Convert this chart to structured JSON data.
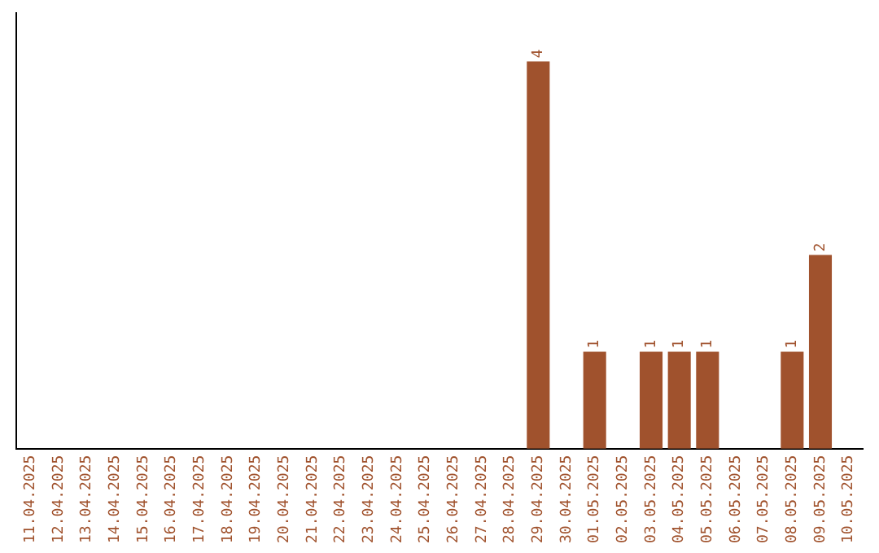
{
  "chart_data": {
    "type": "bar",
    "categories": [
      "11.04.2025",
      "12.04.2025",
      "13.04.2025",
      "14.04.2025",
      "15.04.2025",
      "16.04.2025",
      "17.04.2025",
      "18.04.2025",
      "19.04.2025",
      "20.04.2025",
      "21.04.2025",
      "22.04.2025",
      "23.04.2025",
      "24.04.2025",
      "25.04.2025",
      "26.04.2025",
      "27.04.2025",
      "28.04.2025",
      "29.04.2025",
      "30.04.2025",
      "01.05.2025",
      "02.05.2025",
      "03.05.2025",
      "04.05.2025",
      "05.05.2025",
      "06.05.2025",
      "07.05.2025",
      "08.05.2025",
      "09.05.2025",
      "10.05.2025"
    ],
    "values": [
      null,
      null,
      null,
      null,
      null,
      null,
      null,
      null,
      null,
      null,
      null,
      null,
      null,
      null,
      null,
      null,
      null,
      null,
      4,
      null,
      1,
      null,
      1,
      1,
      1,
      null,
      null,
      1,
      2,
      null
    ],
    "value_labels": [
      null,
      null,
      null,
      null,
      null,
      null,
      null,
      null,
      null,
      null,
      null,
      null,
      null,
      null,
      null,
      null,
      null,
      null,
      "4",
      null,
      "1",
      null,
      "1",
      "1",
      "1",
      null,
      null,
      "1",
      "2",
      null
    ],
    "color": "#a0522d",
    "grid": false,
    "legend": false
  }
}
